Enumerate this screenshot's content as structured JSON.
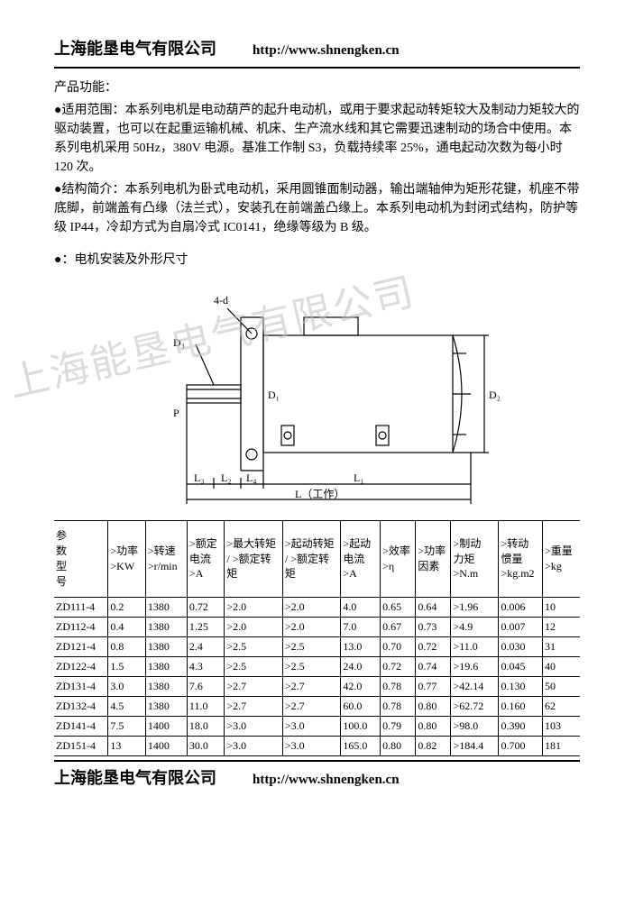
{
  "header": {
    "company": "上海能垦电气有限公司",
    "url": "http://www.shnengken.cn"
  },
  "sections": {
    "product_fn_label": "产品功能：",
    "scope_label": "●适用范围：",
    "scope_text": "本系列电机是电动葫芦的起升电动机，或用于要求起动转矩较大及制动力矩较大的驱动装置，也可以在起重运输机械、机床、生产流水线和其它需要迅速制动的场合中使用。本系列电机采用 50Hz，380V 电源。基准工作制 S3，负载持续率 25%，通电起动次数为每小时 120 次。",
    "struct_label": "●结构简介：",
    "struct_text": "本系列电机为卧式电动机，采用圆锥面制动器，输出端轴伸为矩形花键，机座不带底脚，前端盖有凸缘（法兰式），安装孔在前端盖凸缘上。本系列电动机为封闭式结构，防护等级 IP44，冷却方式为自扇冷式 IC0141，绝缘等级为 B 级。",
    "dim_label": "●：电机安装及外形尺寸"
  },
  "watermark": "上海能垦电气有限公司",
  "diagram_labels": {
    "ann4d": "4-d",
    "D3": "D₃",
    "P": "P",
    "D1": "D₁",
    "D2": "D₂",
    "L3": "L₃",
    "L2": "L₂",
    "L4": "L₄",
    "L1": "L₁",
    "Ltotal": "L（工作）"
  },
  "table": {
    "columns": [
      "参\n数\n型\n号",
      ">功率\n>KW",
      ">转速\n>r/min",
      ">额定\n电流\n>A",
      ">最大转矩\n/ >额定转\n矩",
      ">起动转矩\n/ >额定转\n矩",
      ">起动\n电流\n>A",
      ">效率\n>η",
      ">功率\n因素",
      ">制动\n力矩\n>N.m",
      ">转动\n惯量\n>kg.m2",
      ">重量\n>kg"
    ],
    "rows": [
      [
        "ZD111-4",
        "0.2",
        "1380",
        "0.72",
        ">2.0",
        ">2.0",
        "4.0",
        "0.65",
        "0.64",
        ">1.96",
        "0.006",
        "10"
      ],
      [
        "ZD112-4",
        "0.4",
        "1380",
        "1.25",
        ">2.0",
        ">2.0",
        "7.0",
        "0.67",
        "0.73",
        ">4.9",
        "0.007",
        "12"
      ],
      [
        "ZD121-4",
        "0.8",
        "1380",
        "2.4",
        ">2.5",
        ">2.5",
        "13.0",
        "0.70",
        "0.72",
        ">11.0",
        "0.030",
        "31"
      ],
      [
        "ZD122-4",
        "1.5",
        "1380",
        "4.3",
        ">2.5",
        ">2.5",
        "24.0",
        "0.72",
        "0.74",
        ">19.6",
        "0.045",
        "40"
      ],
      [
        "ZD131-4",
        "3.0",
        "1380",
        "7.6",
        ">2.7",
        ">2.7",
        "42.0",
        "0.78",
        "0.77",
        ">42.14",
        "0.130",
        "50"
      ],
      [
        "ZD132-4",
        "4.5",
        "1380",
        "11.0",
        ">2.7",
        ">2.7",
        "60.0",
        "0.78",
        "0.80",
        ">62.72",
        "0.160",
        "62"
      ],
      [
        "ZD141-4",
        "7.5",
        "1400",
        "18.0",
        ">3.0",
        ">3.0",
        "100.0",
        "0.79",
        "0.80",
        ">98.0",
        "0.390",
        "103"
      ],
      [
        "ZD151-4",
        "13",
        "1400",
        "30.0",
        ">3.0",
        ">3.0",
        "165.0",
        "0.80",
        "0.82",
        ">184.4",
        "0.700",
        "181"
      ]
    ],
    "col_widths": [
      "52",
      "36",
      "40",
      "36",
      "56",
      "56",
      "38",
      "34",
      "34",
      "46",
      "42",
      "36"
    ]
  },
  "footer": {
    "company": "上海能垦电气有限公司",
    "url": "http://www.shnengken.cn"
  },
  "colors": {
    "text": "#000000",
    "line": "#000000",
    "watermark": "#c0c0c0",
    "bg": "#ffffff"
  }
}
